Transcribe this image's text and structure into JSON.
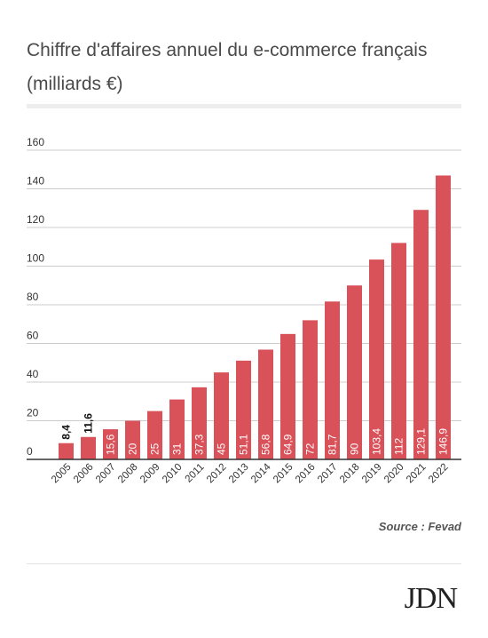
{
  "title": "Chiffre d'affaires annuel du e-commerce français (milliards €)",
  "source": "Source : Fevad",
  "logo_text": "JDN",
  "colors": {
    "bar": "#d9525a",
    "grid": "#cccccc",
    "axis": "#333333"
  },
  "chart_data": {
    "type": "bar",
    "title": "Chiffre d'affaires annuel du e-commerce français (milliards €)",
    "xlabel": "",
    "ylabel": "",
    "ylim": [
      0,
      160
    ],
    "yticks": [
      0,
      20,
      40,
      60,
      80,
      100,
      120,
      140,
      160
    ],
    "grid": true,
    "categories": [
      "2005",
      "2006",
      "2007",
      "2008",
      "2009",
      "2010",
      "2011",
      "2012",
      "2013",
      "2014",
      "2015",
      "2016",
      "2017",
      "2018",
      "2019",
      "2020",
      "2021",
      "2022"
    ],
    "values": [
      8.4,
      11.6,
      15.6,
      20,
      25,
      31,
      37.3,
      45,
      51.1,
      56.8,
      64.9,
      72,
      81.7,
      90,
      103.4,
      112,
      129.1,
      146.9
    ],
    "value_labels": [
      "8,4",
      "11,6",
      "15,6",
      "20",
      "25",
      "31",
      "37,3",
      "45",
      "51,1",
      "56,8",
      "64,9",
      "72",
      "81,7",
      "90",
      "103,4",
      "112",
      "129,1",
      "146,9"
    ]
  }
}
